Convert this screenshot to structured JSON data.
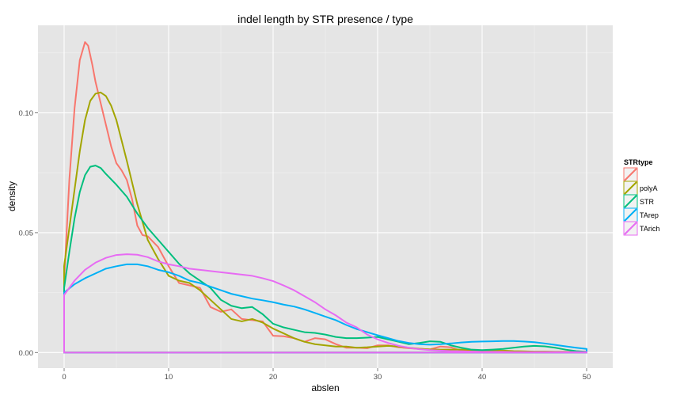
{
  "chart_data": {
    "type": "line",
    "title": "indel length by STR presence / type",
    "xlabel": "abslen",
    "ylabel": "density",
    "xlim": [
      -2.5,
      52.5
    ],
    "ylim": [
      -0.0065,
      0.1365
    ],
    "x_ticks": [
      0,
      10,
      20,
      30,
      40,
      50
    ],
    "x_tick_labels": [
      "0",
      "10",
      "20",
      "30",
      "40",
      "50"
    ],
    "y_ticks": [
      0.0,
      0.05,
      0.1
    ],
    "y_tick_labels": [
      "0.00",
      "0.05",
      "0.10"
    ],
    "grid": true,
    "legend": {
      "title": "STRtype",
      "position": "right"
    },
    "series": [
      {
        "name": "",
        "color": "#F8766D",
        "x": [
          0,
          0.5,
          1,
          1.5,
          2,
          2.3,
          2.7,
          3,
          3.5,
          4,
          4.5,
          5,
          5.5,
          6,
          6.5,
          7,
          7.5,
          8,
          9,
          10,
          11,
          12,
          13,
          14,
          15,
          16,
          17,
          18,
          19,
          20,
          21,
          22,
          23,
          24,
          25,
          26,
          27,
          28,
          29,
          30,
          31,
          32,
          33,
          34,
          35,
          36,
          37,
          38,
          39,
          40,
          41,
          42,
          43,
          44,
          45,
          46,
          47,
          48,
          49,
          50
        ],
        "y": [
          0.03,
          0.072,
          0.102,
          0.122,
          0.1295,
          0.128,
          0.12,
          0.113,
          0.104,
          0.095,
          0.086,
          0.079,
          0.076,
          0.072,
          0.064,
          0.053,
          0.049,
          0.0485,
          0.044,
          0.036,
          0.029,
          0.028,
          0.027,
          0.019,
          0.017,
          0.018,
          0.014,
          0.0135,
          0.013,
          0.007,
          0.0068,
          0.006,
          0.0045,
          0.006,
          0.0055,
          0.0035,
          0.002,
          0.002,
          0.0018,
          0.003,
          0.003,
          0.0022,
          0.0018,
          0.0015,
          0.0013,
          0.0025,
          0.0022,
          0.0008,
          0.0006,
          0.0005,
          0.0005,
          0.0004,
          0.0004,
          0.0003,
          0.0003,
          0.0003,
          0.0003,
          0.0003,
          0.0003,
          0.0003
        ]
      },
      {
        "name": "polyA",
        "color": "#A3A500",
        "x": [
          0,
          0.5,
          1,
          1.5,
          2,
          2.5,
          3,
          3.5,
          4,
          4.5,
          5,
          6,
          7,
          8,
          9,
          10,
          11,
          12,
          13,
          14,
          15,
          16,
          17,
          18,
          19,
          20,
          21,
          22,
          23,
          24,
          25,
          26,
          27,
          28,
          29,
          30,
          31,
          32,
          33,
          34,
          35,
          36,
          37,
          38,
          39,
          40,
          41,
          42,
          43,
          44,
          45,
          46,
          47,
          48,
          49,
          50
        ],
        "y": [
          0.036,
          0.052,
          0.068,
          0.084,
          0.097,
          0.105,
          0.108,
          0.1085,
          0.107,
          0.103,
          0.097,
          0.08,
          0.062,
          0.047,
          0.039,
          0.032,
          0.03,
          0.029,
          0.026,
          0.022,
          0.018,
          0.014,
          0.013,
          0.014,
          0.0125,
          0.01,
          0.008,
          0.006,
          0.0045,
          0.0035,
          0.003,
          0.0025,
          0.0025,
          0.002,
          0.0022,
          0.0025,
          0.0028,
          0.0025,
          0.002,
          0.0016,
          0.0013,
          0.0012,
          0.0012,
          0.0012,
          0.0011,
          0.0009,
          0.0008,
          0.0008,
          0.0006,
          0.0005,
          0.0004,
          0.0004,
          0.0003,
          0.0003,
          0.0002,
          0.0002
        ]
      },
      {
        "name": "STR",
        "color": "#00BF7D",
        "x": [
          0,
          0.5,
          1,
          1.5,
          2,
          2.5,
          3,
          3.5,
          4,
          5,
          6,
          7,
          8,
          9,
          10,
          11,
          12,
          13,
          14,
          15,
          16,
          17,
          18,
          19,
          20,
          21,
          22,
          23,
          24,
          25,
          26,
          27,
          28,
          29,
          30,
          31,
          32,
          33,
          34,
          35,
          36,
          37,
          38,
          39,
          40,
          41,
          42,
          43,
          44,
          45,
          46,
          47,
          48,
          49,
          50
        ],
        "y": [
          0.027,
          0.042,
          0.056,
          0.067,
          0.074,
          0.0775,
          0.078,
          0.077,
          0.0745,
          0.07,
          0.065,
          0.058,
          0.052,
          0.047,
          0.042,
          0.037,
          0.033,
          0.03,
          0.027,
          0.022,
          0.0195,
          0.0185,
          0.019,
          0.016,
          0.012,
          0.0105,
          0.0095,
          0.0085,
          0.0082,
          0.0075,
          0.0065,
          0.006,
          0.006,
          0.0062,
          0.0065,
          0.0055,
          0.0045,
          0.0035,
          0.004,
          0.0047,
          0.0045,
          0.003,
          0.002,
          0.0012,
          0.001,
          0.0012,
          0.0015,
          0.002,
          0.0025,
          0.0028,
          0.0026,
          0.002,
          0.0012,
          0.0006,
          0.0003
        ]
      },
      {
        "name": "TArep",
        "color": "#00B0F6",
        "x": [
          0,
          1,
          2,
          3,
          4,
          5,
          6,
          7,
          8,
          9,
          10,
          11,
          12,
          13,
          14,
          15,
          16,
          17,
          18,
          19,
          20,
          21,
          22,
          23,
          24,
          25,
          26,
          27,
          28,
          29,
          30,
          31,
          32,
          33,
          34,
          35,
          36,
          37,
          38,
          39,
          40,
          41,
          42,
          43,
          44,
          45,
          46,
          47,
          48,
          49,
          50
        ],
        "y": [
          0.025,
          0.0285,
          0.031,
          0.033,
          0.035,
          0.036,
          0.0368,
          0.0368,
          0.036,
          0.0345,
          0.0335,
          0.032,
          0.03,
          0.029,
          0.0275,
          0.026,
          0.0245,
          0.0235,
          0.0225,
          0.0218,
          0.021,
          0.02,
          0.0192,
          0.018,
          0.0165,
          0.015,
          0.0135,
          0.0115,
          0.0098,
          0.0085,
          0.0072,
          0.006,
          0.0048,
          0.004,
          0.0035,
          0.0033,
          0.0035,
          0.0038,
          0.0042,
          0.0045,
          0.0046,
          0.0047,
          0.0048,
          0.0048,
          0.0046,
          0.0043,
          0.0038,
          0.0032,
          0.0026,
          0.002,
          0.0015
        ]
      },
      {
        "name": "TArich",
        "color": "#E76BF3",
        "x": [
          0,
          1,
          2,
          3,
          4,
          5,
          6,
          7,
          8,
          9,
          10,
          11,
          12,
          13,
          14,
          15,
          16,
          17,
          18,
          19,
          20,
          21,
          22,
          23,
          24,
          25,
          26,
          27,
          28,
          29,
          30,
          31,
          32,
          33,
          34,
          35,
          36,
          37,
          38,
          39,
          40,
          41,
          42,
          43,
          44,
          45,
          46,
          47,
          48,
          49,
          50
        ],
        "y": [
          0.024,
          0.03,
          0.0345,
          0.0375,
          0.0395,
          0.0407,
          0.041,
          0.0408,
          0.0398,
          0.038,
          0.0368,
          0.036,
          0.035,
          0.0345,
          0.034,
          0.0335,
          0.033,
          0.0325,
          0.032,
          0.031,
          0.0298,
          0.028,
          0.026,
          0.0235,
          0.021,
          0.018,
          0.0155,
          0.0125,
          0.0105,
          0.0075,
          0.0055,
          0.004,
          0.0028,
          0.002,
          0.0014,
          0.001,
          0.0008,
          0.0006,
          0.0005,
          0.0004,
          0.0003,
          0.0003,
          0.0003,
          0.0002,
          0.0002,
          0.0002,
          0.0002,
          0.0002,
          0.0002,
          0.0002,
          0.0002
        ]
      }
    ]
  }
}
